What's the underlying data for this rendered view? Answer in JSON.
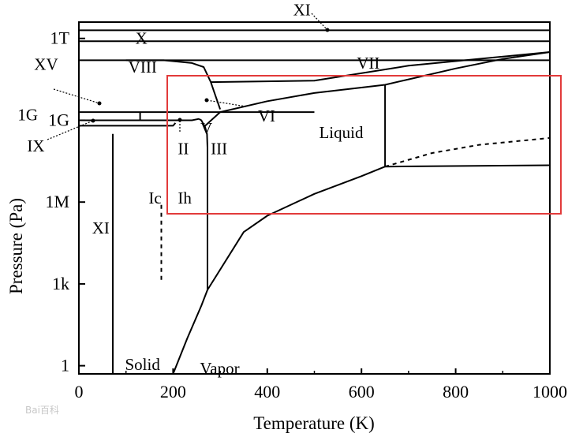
{
  "watermark": {
    "text": "Bai百科"
  },
  "chart_data": {
    "type": "line",
    "title": "",
    "xlabel": "Temperature (K)",
    "ylabel": "Pressure (Pa)",
    "xlim": [
      0,
      1000
    ],
    "ylim_log10": [
      -0.3,
      12.6
    ],
    "y_scale": "log",
    "x_ticks": [
      0,
      200,
      400,
      600,
      800,
      1000
    ],
    "x_tick_labels": [
      "0",
      "200",
      "400",
      "600",
      "800",
      "1000"
    ],
    "y_ticks_log10": [
      0,
      3,
      6,
      9,
      12
    ],
    "y_tick_labels": [
      "1",
      "1k",
      "1M",
      "1G",
      "1T"
    ],
    "grid": false,
    "highlight_color": "#e23a3a",
    "series": [
      {
        "key": "vapor_line",
        "style": "solid",
        "points": [
          [
            200,
            -0.6
          ],
          [
            230,
            1.0
          ],
          [
            260,
            2.2
          ],
          [
            273,
            2.78
          ],
          [
            350,
            4.9
          ],
          [
            400,
            5.5
          ],
          [
            500,
            6.3
          ],
          [
            600,
            6.95
          ],
          [
            650,
            7.3
          ]
        ]
      },
      {
        "key": "liquid_gas_dashed",
        "style": "dashed",
        "points": [
          [
            650,
            7.3
          ],
          [
            750,
            7.8
          ],
          [
            850,
            8.1
          ],
          [
            1000,
            8.35
          ]
        ]
      },
      {
        "key": "supercritical_flat",
        "style": "solid",
        "points": [
          [
            650,
            7.3
          ],
          [
            1000,
            7.35
          ]
        ]
      },
      {
        "key": "critical_vertical",
        "style": "solid",
        "points": [
          [
            650,
            7.3
          ],
          [
            650,
            10.3
          ]
        ]
      },
      {
        "key": "melting_line",
        "style": "solid",
        "points": [
          [
            265,
            8.75
          ],
          [
            300,
            9.3
          ],
          [
            400,
            9.7
          ],
          [
            500,
            10.0
          ],
          [
            600,
            10.2
          ],
          [
            650,
            10.3
          ],
          [
            700,
            10.5
          ],
          [
            800,
            10.9
          ],
          [
            900,
            11.25
          ],
          [
            1000,
            11.5
          ]
        ]
      },
      {
        "key": "ice_ih_boundary",
        "style": "solid",
        "points": [
          [
            273,
            2.78
          ],
          [
            273,
            8.0
          ],
          [
            272,
            8.5
          ],
          [
            268,
            8.75
          ],
          [
            260,
            9.0
          ],
          [
            255,
            9.05
          ]
        ]
      },
      {
        "key": "ice_xi_line",
        "style": "solid",
        "points": [
          [
            72,
            -1.0
          ],
          [
            72,
            8.5
          ]
        ]
      },
      {
        "key": "ic_dashed",
        "style": "dashed",
        "points": [
          [
            175,
            3.15
          ],
          [
            175,
            6.0
          ]
        ]
      },
      {
        "key": "ice_viii_vii_curve",
        "style": "solid",
        "points": [
          [
            100,
            11.2
          ],
          [
            180,
            11.2
          ],
          [
            240,
            11.1
          ],
          [
            265,
            10.95
          ],
          [
            280,
            10.4
          ],
          [
            290,
            9.9
          ],
          [
            300,
            9.4
          ]
        ]
      },
      {
        "key": "vii_top",
        "style": "solid",
        "points": [
          [
            280,
            10.4
          ],
          [
            500,
            10.45
          ],
          [
            700,
            11.0
          ],
          [
            1000,
            11.5
          ]
        ]
      },
      {
        "key": "x_line",
        "style": "solid",
        "points": [
          [
            0,
            11.2
          ],
          [
            1000,
            11.2
          ]
        ]
      },
      {
        "key": "x_upper",
        "style": "solid",
        "points": [
          [
            0,
            11.9
          ],
          [
            1000,
            11.9
          ]
        ]
      },
      {
        "key": "xi_top",
        "style": "solid",
        "points": [
          [
            0,
            12.3
          ],
          [
            1000,
            12.3
          ]
        ]
      },
      {
        "key": "xv_line",
        "style": "solid",
        "points": [
          [
            0,
            9.3
          ],
          [
            500,
            9.3
          ]
        ]
      },
      {
        "key": "ix_line",
        "style": "solid",
        "points": [
          [
            0,
            8.8
          ],
          [
            200,
            8.8
          ],
          [
            205,
            8.9
          ]
        ]
      },
      {
        "key": "ii_line",
        "style": "solid",
        "points": [
          [
            0,
            9.0
          ],
          [
            240,
            9.0
          ],
          [
            255,
            9.05
          ]
        ]
      },
      {
        "key": "viii_short_vertical",
        "style": "solid",
        "points": [
          [
            130,
            9.3
          ],
          [
            130,
            9.0
          ]
        ]
      }
    ],
    "annotations": [
      {
        "text": "XI",
        "x": 455,
        "y": 12.85
      },
      {
        "text": "X",
        "x": 120,
        "y": 11.8
      },
      {
        "text": "VIII",
        "x": 105,
        "y": 10.75
      },
      {
        "text": "VII",
        "x": 590,
        "y": 10.9
      },
      {
        "text": "XV",
        "x": -95,
        "y": 10.85
      },
      {
        "text": "1G",
        "x": -130,
        "y": 9.0
      },
      {
        "text": "VI",
        "x": 380,
        "y": 8.95
      },
      {
        "text": "V",
        "x": 258,
        "y": 8.5
      },
      {
        "text": "Liquid",
        "x": 510,
        "y": 8.35
      },
      {
        "text": "IX",
        "x": -110,
        "y": 7.85
      },
      {
        "text": "II",
        "x": 210,
        "y": 7.75
      },
      {
        "text": "III",
        "x": 280,
        "y": 7.75
      },
      {
        "text": "Ic",
        "x": 148,
        "y": 5.95
      },
      {
        "text": "Ih",
        "x": 210,
        "y": 5.95
      },
      {
        "text": "XI",
        "x": 28,
        "y": 4.85
      },
      {
        "text": "Solid",
        "x": 98,
        "y": -0.15
      },
      {
        "text": "Vapor",
        "x": 257,
        "y": -0.3
      }
    ]
  }
}
